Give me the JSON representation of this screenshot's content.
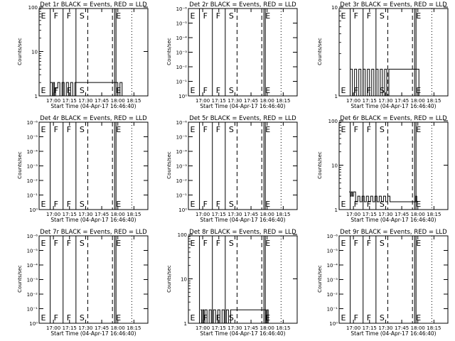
{
  "chart_data": [
    {
      "panel": "Det 1r",
      "title": "Det 1r BLACK = Events, RED = LLD",
      "type": "line",
      "yscale": "log",
      "ylabel": "Counts/sec",
      "xlabel": "Start Time (04-Apr-17 16:46:40)",
      "ytick_labels": [
        "1",
        "10",
        "100"
      ],
      "ytick_values": [
        1,
        10,
        100
      ],
      "ylim": [
        1,
        100
      ],
      "xtick_labels": [
        "17:00",
        "17:15",
        "17:30",
        "17:45",
        "18:00",
        "18:15"
      ],
      "flags": [
        "E",
        "F",
        "F",
        "S",
        "E"
      ],
      "series": [
        {
          "x": [
            "16:57",
            "16:58",
            "16:59",
            "17:00",
            "17:01",
            "17:02",
            "17:04",
            "17:06",
            "17:08",
            "17:10",
            "17:12",
            "17:14",
            "17:16",
            "17:18",
            "17:20",
            "17:58",
            "18:00",
            "18:02",
            "18:04"
          ],
          "y": [
            2,
            2,
            1,
            2,
            1,
            1.5,
            2,
            1,
            2,
            1,
            2,
            1,
            2,
            1,
            2,
            2,
            1,
            2,
            1
          ]
        }
      ]
    },
    {
      "panel": "Det 2r",
      "title": "Det 2r BLACK = Events, RED = LLD",
      "type": "line",
      "yscale": "log",
      "ylabel": "Counts/sec",
      "xlabel": "Start Time (04-Apr-17 16:46:40)",
      "ytick_labels": [
        "10⁰",
        "10⁻¹",
        "10⁻²",
        "10⁻³",
        "10⁻⁴",
        "10⁻⁵",
        "10⁻⁶"
      ],
      "ylim": [
        1e-06,
        1
      ],
      "xtick_labels": [
        "17:00",
        "17:15",
        "17:30",
        "17:45",
        "18:00",
        "18:15"
      ],
      "flags": [
        "E",
        "F",
        "F",
        "S",
        "E"
      ],
      "series": []
    },
    {
      "panel": "Det 3r",
      "title": "Det 3r BLACK = Events, RED = LLD",
      "type": "line",
      "yscale": "log",
      "ylabel": "Counts/sec",
      "xlabel": "Start Time (04-Apr-17 16:46:40)",
      "ytick_labels": [
        "1",
        "10"
      ],
      "ytick_values": [
        1,
        10
      ],
      "ylim": [
        1,
        10
      ],
      "xtick_labels": [
        "17:00",
        "17:15",
        "17:30",
        "17:45",
        "18:00",
        "18:15"
      ],
      "flags": [
        "E",
        "F",
        "F",
        "S",
        "E"
      ],
      "series": [
        {
          "x": [
            "16:57",
            "16:59",
            "17:01",
            "17:03",
            "17:05",
            "17:07",
            "17:09",
            "17:11",
            "17:13",
            "17:15",
            "17:17",
            "17:19",
            "17:21",
            "17:23",
            "17:25",
            "17:27",
            "17:29",
            "17:31",
            "17:33",
            "17:59",
            "18:01"
          ],
          "y": [
            2,
            1,
            2,
            1,
            2,
            1,
            2,
            1,
            2,
            1,
            2,
            1,
            2,
            1,
            2,
            1,
            2,
            1,
            2,
            2,
            1
          ]
        }
      ]
    },
    {
      "panel": "Det 4r",
      "title": "Det 4r BLACK = Events, RED = LLD",
      "type": "line",
      "yscale": "log",
      "ylabel": "Counts/sec",
      "xlabel": "Start Time (04-Apr-17 16:46:40)",
      "ytick_labels": [
        "10⁰",
        "10⁻¹",
        "10⁻²",
        "10⁻³",
        "10⁻⁴",
        "10⁻⁵",
        "10⁻⁶"
      ],
      "ylim": [
        1e-06,
        1
      ],
      "xtick_labels": [
        "17:00",
        "17:15",
        "17:30",
        "17:45",
        "18:00",
        "18:15"
      ],
      "flags": [
        "E",
        "F",
        "F",
        "S",
        "E"
      ],
      "series": []
    },
    {
      "panel": "Det 5r",
      "title": "Det 5r BLACK = Events, RED = LLD",
      "type": "line",
      "yscale": "log",
      "ylabel": "Counts/sec",
      "xlabel": "Start Time (04-Apr-17 16:46:40)",
      "ytick_labels": [
        "10⁰",
        "10⁻¹",
        "10⁻²",
        "10⁻³",
        "10⁻⁴",
        "10⁻⁵",
        "10⁻⁶"
      ],
      "ylim": [
        1e-06,
        1
      ],
      "xtick_labels": [
        "17:00",
        "17:15",
        "17:30",
        "17:45",
        "18:00",
        "18:15"
      ],
      "flags": [
        "E",
        "F",
        "F",
        "S",
        "E"
      ],
      "series": []
    },
    {
      "panel": "Det 6r",
      "title": "Det 6r BLACK = Events, RED = LLD",
      "type": "line",
      "yscale": "log",
      "ylabel": "Counts/sec",
      "xlabel": "Start Time (04-Apr-17 16:46:40)",
      "ytick_labels": [
        "1",
        "10",
        "100"
      ],
      "ytick_values": [
        1,
        10,
        100
      ],
      "ylim": [
        1,
        100
      ],
      "xtick_labels": [
        "17:00",
        "17:15",
        "17:30",
        "17:45",
        "18:00",
        "18:15"
      ],
      "flags": [
        "E",
        "F",
        "F",
        "S",
        "E"
      ],
      "series": [
        {
          "x": [
            "16:56",
            "16:57",
            "16:58",
            "16:59",
            "17:00",
            "17:02",
            "17:04",
            "17:06",
            "17:08",
            "17:10",
            "17:12",
            "17:14",
            "17:16",
            "17:18",
            "17:20",
            "17:22",
            "17:24",
            "17:26",
            "17:28",
            "17:30",
            "17:32",
            "17:34",
            "17:58",
            "17:59"
          ],
          "y": [
            2.5,
            2,
            2.5,
            2,
            2.5,
            1.5,
            2,
            1.5,
            2,
            1.5,
            2,
            1.5,
            2,
            1.5,
            2,
            1.5,
            2,
            1.5,
            2,
            1.5,
            2,
            1.5,
            2,
            1.5
          ]
        }
      ]
    },
    {
      "panel": "Det 7r",
      "title": "Det 7r BLACK = Events, RED = LLD",
      "type": "line",
      "yscale": "log",
      "ylabel": "Counts/sec",
      "xlabel": "Start Time (04-Apr-17 16:46:40)",
      "ytick_labels": [
        "10⁰",
        "10⁻¹",
        "10⁻²",
        "10⁻³",
        "10⁻⁴",
        "10⁻⁵",
        "10⁻⁶"
      ],
      "ylim": [
        1e-06,
        1
      ],
      "xtick_labels": [
        "17:00",
        "17:15",
        "17:30",
        "17:45",
        "18:00",
        "18:15"
      ],
      "flags": [
        "E",
        "F",
        "F",
        "S",
        "E"
      ],
      "series": []
    },
    {
      "panel": "Det 8r",
      "title": "Det 8r BLACK = Events, RED = LLD",
      "type": "line",
      "yscale": "log",
      "ylabel": "Counts/sec",
      "xlabel": "Start Time (04-Apr-17 16:46:40)",
      "ytick_labels": [
        "1",
        "10",
        "100"
      ],
      "ytick_values": [
        1,
        10,
        100
      ],
      "ylim": [
        1,
        100
      ],
      "xtick_labels": [
        "17:00",
        "17:15",
        "17:30",
        "17:45",
        "18:00",
        "18:15"
      ],
      "flags": [
        "E",
        "F",
        "F",
        "S",
        "E"
      ],
      "series": [
        {
          "x": [
            "16:58",
            "16:59",
            "17:00",
            "17:01",
            "17:02",
            "17:04",
            "17:06",
            "17:08",
            "17:10",
            "17:12",
            "17:14",
            "17:16",
            "17:18",
            "17:20",
            "17:22",
            "17:24",
            "17:26",
            "17:58",
            "17:59",
            "18:00",
            "18:01"
          ],
          "y": [
            2,
            1,
            2,
            1,
            2,
            1,
            2,
            1,
            2,
            1,
            2,
            1,
            2,
            1,
            2,
            1,
            2,
            2,
            1,
            2,
            1
          ]
        }
      ]
    },
    {
      "panel": "Det 9r",
      "title": "Det 9r BLACK = Events, RED = LLD",
      "type": "line",
      "yscale": "log",
      "ylabel": "Counts/sec",
      "xlabel": "Start Time (04-Apr-17 16:46:40)",
      "ytick_labels": [
        "10⁰",
        "10⁻¹",
        "10⁻²",
        "10⁻³",
        "10⁻⁴",
        "10⁻⁵",
        "10⁻⁶"
      ],
      "ylim": [
        1e-06,
        1
      ],
      "xtick_labels": [
        "17:00",
        "17:15",
        "17:30",
        "17:45",
        "18:00",
        "18:15"
      ],
      "flags": [
        "E",
        "F",
        "F",
        "S",
        "E"
      ],
      "series": []
    }
  ],
  "x_axis": {
    "start": "16:46:40",
    "end": "18:28:00",
    "tick_times": [
      "17:00",
      "17:15",
      "17:30",
      "17:45",
      "18:00",
      "18:15"
    ]
  },
  "markers": {
    "solid": [
      "16:57",
      "17:09",
      "17:21",
      "17:57"
    ],
    "dashed": [
      "17:32",
      "17:55"
    ],
    "dotted": [
      "18:13"
    ],
    "flag_times": [
      "16:47",
      "16:59",
      "17:11",
      "17:23",
      "17:57"
    ]
  },
  "colors": {
    "series": "#000000",
    "background": "#ffffff"
  }
}
